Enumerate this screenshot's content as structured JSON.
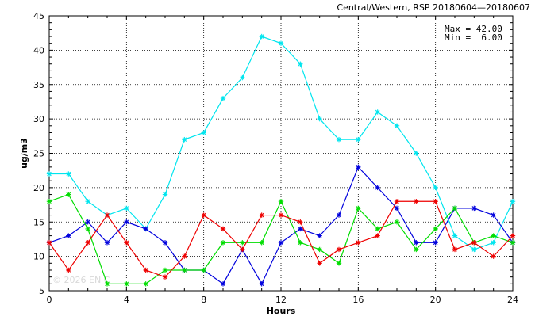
{
  "chart_data": {
    "type": "line",
    "title": "Central/Western, RSP 20180604—20180607",
    "xlabel": "Hours",
    "ylabel": "ug/m3",
    "xlim": [
      0,
      24
    ],
    "ylim": [
      5,
      45
    ],
    "xticks": [
      0,
      4,
      8,
      12,
      16,
      20,
      24
    ],
    "yticks": [
      5,
      10,
      15,
      20,
      25,
      30,
      35,
      40,
      45
    ],
    "grid": true,
    "marker": "asterisk",
    "stats": [
      "Max = 42.00",
      "Min =  6.00"
    ],
    "watermark": "© 2026 EN C",
    "x": [
      0,
      1,
      2,
      3,
      4,
      5,
      6,
      7,
      8,
      9,
      10,
      11,
      12,
      13,
      14,
      15,
      16,
      17,
      18,
      19,
      20,
      21,
      22,
      23,
      24
    ],
    "series": [
      {
        "color": "#00e5ee",
        "values": [
          22,
          22,
          18,
          16,
          17,
          14,
          19,
          27,
          28,
          33,
          36,
          42,
          41,
          38,
          30,
          27,
          27,
          31,
          29,
          25,
          20,
          13,
          11,
          12,
          18
        ]
      },
      {
        "color": "#0000dd",
        "values": [
          12,
          13,
          15,
          12,
          15,
          14,
          12,
          8,
          8,
          6,
          11,
          6,
          12,
          14,
          13,
          16,
          23,
          20,
          17,
          12,
          12,
          17,
          17,
          16,
          12
        ]
      },
      {
        "color": "#00dd00",
        "values": [
          18,
          19,
          14,
          6,
          6,
          6,
          8,
          8,
          8,
          12,
          12,
          12,
          18,
          12,
          11,
          9,
          17,
          14,
          15,
          11,
          14,
          17,
          12,
          13,
          12
        ]
      },
      {
        "color": "#ee0000",
        "values": [
          12,
          8,
          12,
          16,
          12,
          8,
          7,
          10,
          16,
          14,
          11,
          16,
          16,
          15,
          9,
          11,
          12,
          13,
          18,
          18,
          18,
          11,
          12,
          10,
          13
        ]
      }
    ]
  }
}
